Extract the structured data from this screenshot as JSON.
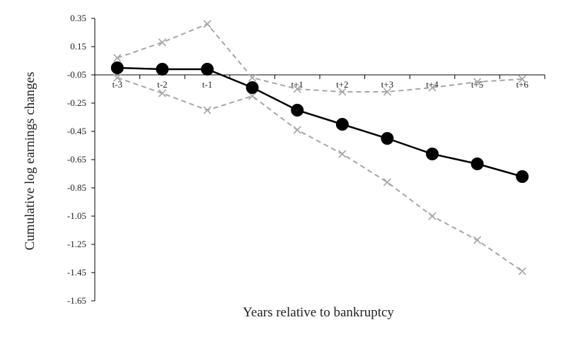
{
  "chart_data": {
    "type": "line",
    "xlabel": "Years relative to bankruptcy",
    "ylabel": "Cumulative log earnings changes",
    "categories": [
      "t-3",
      "t-2",
      "t-1",
      "t",
      "t+1",
      "t+2",
      "t+3",
      "t+4",
      "t+5",
      "t+6"
    ],
    "yticks": [
      "0.35",
      "0.15",
      "-0.05",
      "-0.25",
      "-0.45",
      "-0.65",
      "-0.85",
      "-1.05",
      "-1.25",
      "-1.45",
      "-1.65"
    ],
    "ylim": [
      -1.65,
      0.35
    ],
    "grid": false,
    "legend": "none",
    "series": [
      {
        "values": [
          0.0,
          -0.01,
          -0.01,
          -0.14,
          -0.3,
          -0.4,
          -0.5,
          -0.61,
          -0.68,
          -0.77
        ],
        "style": "solid",
        "marker": "circle",
        "color": "#000000"
      },
      {
        "values": [
          0.07,
          0.18,
          0.31,
          -0.07,
          -0.15,
          -0.17,
          -0.17,
          -0.14,
          -0.1,
          -0.08
        ],
        "style": "dashed",
        "marker": "x",
        "color": "#a6a6a6"
      },
      {
        "values": [
          -0.07,
          -0.18,
          -0.3,
          -0.2,
          -0.44,
          -0.61,
          -0.81,
          -1.05,
          -1.22,
          -1.44
        ],
        "style": "dashed",
        "marker": "x",
        "color": "#a6a6a6"
      }
    ]
  }
}
